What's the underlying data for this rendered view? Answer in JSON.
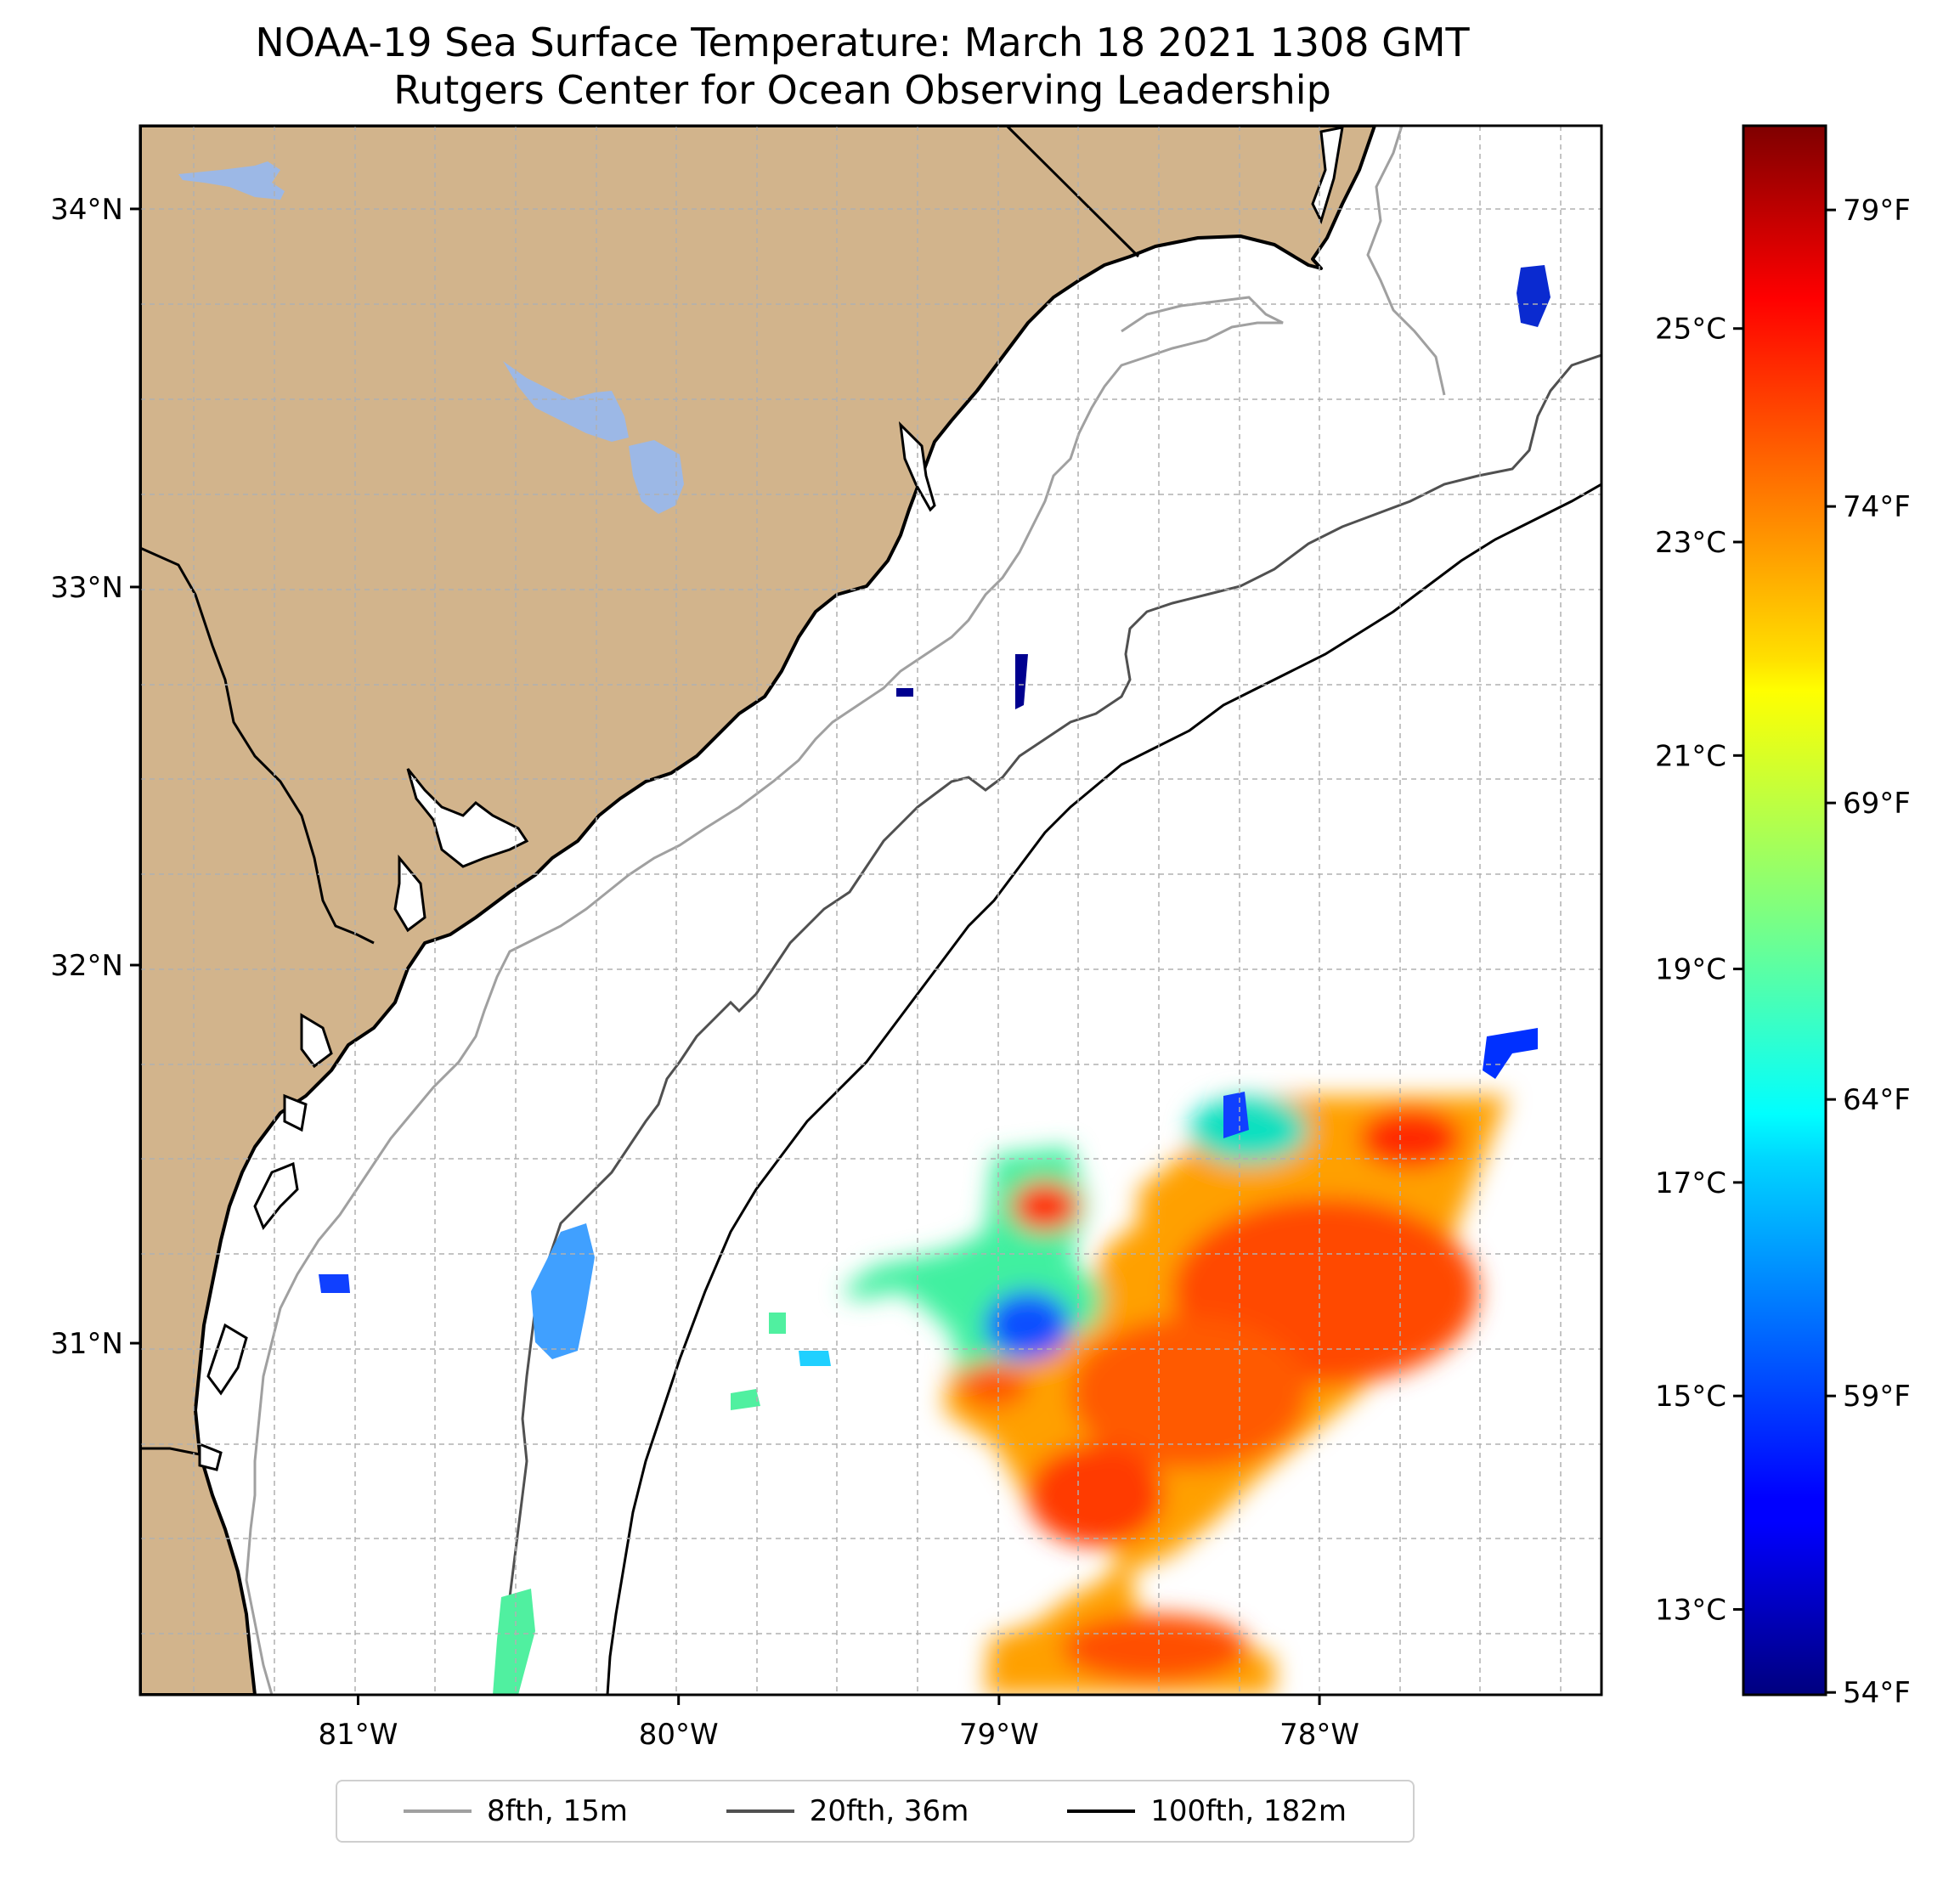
{
  "title": {
    "line1": "NOAA-19 Sea Surface Temperature: March 18 2021 1308 GMT",
    "line2": "Rutgers Center for Ocean Observing Leadership"
  },
  "map": {
    "lon_range": [
      -81.68,
      -77.12
    ],
    "lat_range": [
      30.07,
      34.22
    ],
    "lon_ticks": [
      {
        "value": -81,
        "label": "81°W"
      },
      {
        "value": -80,
        "label": "80°W"
      },
      {
        "value": -79,
        "label": "79°W"
      },
      {
        "value": -78,
        "label": "78°W"
      }
    ],
    "lat_ticks": [
      {
        "value": 31,
        "label": "31°N"
      },
      {
        "value": 32,
        "label": "32°N"
      },
      {
        "value": 33,
        "label": "33°N"
      },
      {
        "value": 34,
        "label": "34°N"
      }
    ],
    "gridlines": true,
    "land_color": "#d2b48c",
    "water_body_color": "#9cb8e6"
  },
  "colorbar": {
    "colormap": "jet",
    "celsius_ticks": [
      "25°C",
      "23°C",
      "21°C",
      "19°C",
      "17°C",
      "15°C",
      "13°C"
    ],
    "fahrenheit_ticks": [
      "79°F",
      "74°F",
      "69°F",
      "64°F",
      "59°F",
      "54°F"
    ],
    "celsius_values": [
      25,
      23,
      21,
      19,
      17,
      15,
      13
    ],
    "fahrenheit_values": [
      79,
      74,
      69,
      64,
      59,
      54
    ],
    "range_c": [
      12.2,
      26.9
    ]
  },
  "legend": {
    "items": [
      {
        "label": "8fth, 15m",
        "color": "#a0a0a0"
      },
      {
        "label": "20fth, 36m",
        "color": "#505050"
      },
      {
        "label": "100fth, 182m",
        "color": "#000000"
      }
    ],
    "position": "bottom-center"
  }
}
